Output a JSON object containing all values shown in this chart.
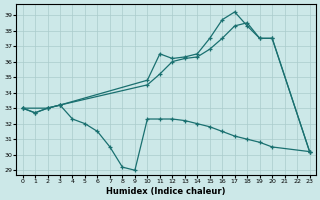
{
  "xlabel": "Humidex (Indice chaleur)",
  "bg_color": "#cce8e8",
  "line_color": "#1a7070",
  "grid_color": "#aacccc",
  "xlim": [
    -0.5,
    23.5
  ],
  "ylim": [
    28.7,
    39.7
  ],
  "yticks": [
    29,
    30,
    31,
    32,
    33,
    34,
    35,
    36,
    37,
    38,
    39
  ],
  "xticks": [
    0,
    1,
    2,
    3,
    4,
    5,
    6,
    7,
    8,
    9,
    10,
    11,
    12,
    13,
    14,
    15,
    16,
    17,
    18,
    19,
    20,
    21,
    22,
    23
  ],
  "line_diagonal": {
    "x": [
      0,
      1,
      2,
      3,
      10,
      11,
      12,
      13,
      14,
      15,
      16,
      17,
      18,
      19,
      20,
      23
    ],
    "y": [
      33.0,
      32.7,
      33.0,
      33.2,
      34.5,
      35.2,
      36.0,
      36.2,
      36.3,
      36.8,
      37.5,
      38.3,
      38.5,
      37.5,
      37.5,
      30.2
    ]
  },
  "line_peak": {
    "x": [
      0,
      2,
      3,
      10,
      11,
      12,
      13,
      14,
      15,
      16,
      17,
      18,
      19,
      20,
      23
    ],
    "y": [
      33.0,
      33.0,
      33.2,
      34.8,
      36.5,
      36.2,
      36.3,
      36.5,
      37.5,
      38.7,
      39.2,
      38.3,
      37.5,
      37.5,
      30.2
    ]
  },
  "line_dip": {
    "x": [
      0,
      1,
      2,
      3,
      4,
      5,
      6,
      7,
      8,
      9,
      10,
      11,
      12,
      13,
      14,
      15,
      16,
      17,
      18,
      19,
      20,
      23
    ],
    "y": [
      33.0,
      32.7,
      33.0,
      33.2,
      32.3,
      32.0,
      31.5,
      30.5,
      29.2,
      29.0,
      32.3,
      32.3,
      32.3,
      32.2,
      32.0,
      31.8,
      31.5,
      31.2,
      31.0,
      30.8,
      30.5,
      30.2
    ]
  }
}
